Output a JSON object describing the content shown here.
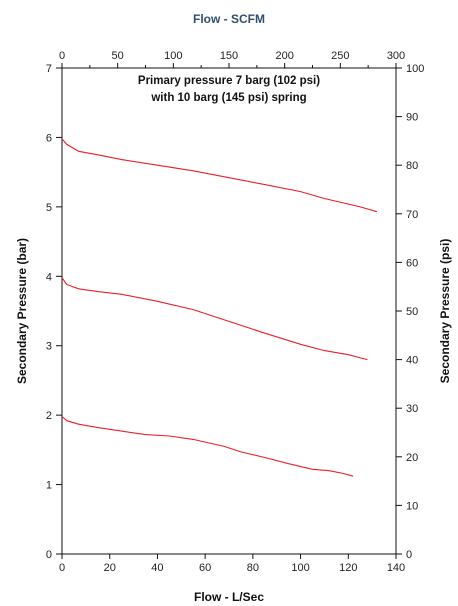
{
  "chart_data": {
    "type": "line",
    "title": "Primary pressure 7 barg (102 psi)",
    "subtitle": "with 10 barg (145 psi) spring",
    "axes": {
      "bottom": {
        "label": "Flow - L/Sec",
        "ticks": [
          "0",
          "20",
          "40",
          "60",
          "80",
          "100",
          "120",
          "140"
        ],
        "range": [
          0,
          140
        ]
      },
      "top": {
        "label": "Flow - SCFM",
        "label_color": "#2f4f6f",
        "ticks": [
          "0",
          "50",
          "100",
          "150",
          "200",
          "250",
          "300"
        ],
        "range": [
          0,
          300
        ]
      },
      "left": {
        "label": "Secondary Pressure (bar)",
        "ticks": [
          "0",
          "1",
          "2",
          "3",
          "4",
          "5",
          "6",
          "7"
        ],
        "range": [
          0,
          7
        ]
      },
      "right": {
        "label": "Secondary Pressure (psi)",
        "ticks": [
          "0",
          "10",
          "20",
          "30",
          "40",
          "50",
          "60",
          "70",
          "80",
          "90",
          "100"
        ],
        "range": [
          0,
          100
        ]
      }
    },
    "grid": false,
    "legend": "none",
    "line_color": "#e8202a",
    "series": [
      {
        "x": [
          0,
          2,
          7,
          15,
          25,
          40,
          55,
          70,
          85,
          100,
          110,
          125,
          132
        ],
        "y": [
          5.98,
          5.9,
          5.8,
          5.75,
          5.68,
          5.6,
          5.52,
          5.42,
          5.32,
          5.22,
          5.12,
          5.0,
          4.93
        ]
      },
      {
        "x": [
          0,
          2,
          7,
          15,
          25,
          40,
          55,
          70,
          85,
          100,
          110,
          120,
          128
        ],
        "y": [
          3.98,
          3.88,
          3.82,
          3.78,
          3.74,
          3.64,
          3.52,
          3.35,
          3.18,
          3.02,
          2.93,
          2.87,
          2.8
        ]
      },
      {
        "x": [
          0,
          2,
          7,
          15,
          25,
          35,
          45,
          55,
          68,
          75,
          85,
          95,
          105,
          112,
          118,
          122
        ],
        "y": [
          1.98,
          1.92,
          1.87,
          1.82,
          1.77,
          1.72,
          1.7,
          1.65,
          1.55,
          1.47,
          1.39,
          1.3,
          1.22,
          1.2,
          1.16,
          1.12
        ]
      }
    ]
  }
}
